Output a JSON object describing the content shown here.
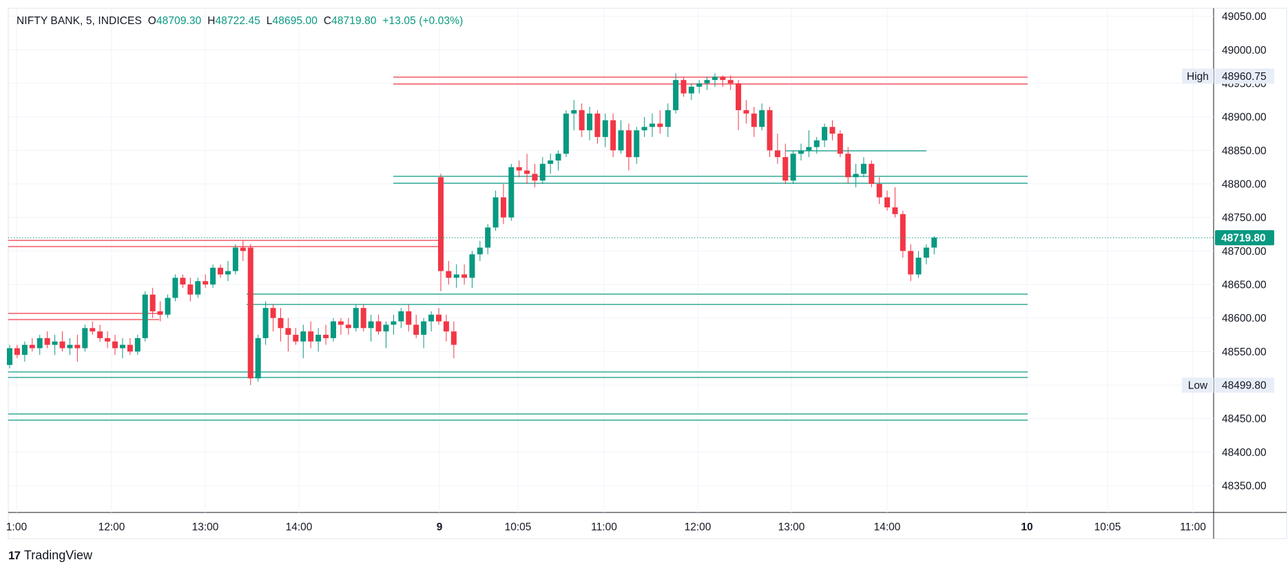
{
  "header": {
    "symbol": "NIFTY BANK, 5, INDICES",
    "open_label": "O",
    "open": "48709.30",
    "high_label": "H",
    "high": "48722.45",
    "low_label": "L",
    "low": "48695.00",
    "close_label": "C",
    "close": "48719.80",
    "change": "+13.05 (+0.03%)"
  },
  "brand": {
    "logo": "17",
    "name": "TradingView"
  },
  "colors": {
    "up": "#089981",
    "down": "#f23645",
    "grid": "#f0f3fa",
    "axis": "#131722"
  },
  "chart_data": {
    "type": "candlestick",
    "y_ticks": [
      48350,
      48400,
      48450,
      48500,
      48550,
      48600,
      48650,
      48700,
      48750,
      48800,
      48850,
      48900,
      48950,
      49000,
      49050
    ],
    "y_tick_labels": [
      "48350.00",
      "48400.00",
      "48450.00",
      "48500.00",
      "48550.00",
      "48600.00",
      "48650.00",
      "48700.00",
      "48750.00",
      "48800.00",
      "48850.00",
      "48900.00",
      "48950.00",
      "49000.00",
      "49050.00"
    ],
    "ylim": [
      48310,
      49062
    ],
    "x_ticks": [
      {
        "label": "1:00",
        "bold": false
      },
      {
        "label": "12:00",
        "bold": false
      },
      {
        "label": "13:00",
        "bold": false
      },
      {
        "label": "14:00",
        "bold": false
      },
      {
        "label": "9",
        "bold": true
      },
      {
        "label": "10:05",
        "bold": false
      },
      {
        "label": "11:00",
        "bold": false
      },
      {
        "label": "12:00",
        "bold": false
      },
      {
        "label": "13:00",
        "bold": false
      },
      {
        "label": "14:00",
        "bold": false
      },
      {
        "label": "10",
        "bold": true
      },
      {
        "label": "10:05",
        "bold": false
      },
      {
        "label": "11:00",
        "bold": false
      }
    ],
    "price_tags": [
      {
        "name": "High",
        "value": "48960.75",
        "y": 48960.75
      },
      {
        "name": "Low",
        "value": "48499.80",
        "y": 48499.8
      }
    ],
    "last_price": {
      "value": "48719.80",
      "y": 48719.8
    },
    "candles": [
      [
        48530,
        48560,
        48525,
        48555
      ],
      [
        48555,
        48560,
        48540,
        48545
      ],
      [
        48545,
        48565,
        48535,
        48560
      ],
      [
        48560,
        48570,
        48550,
        48555
      ],
      [
        48555,
        48575,
        48545,
        48570
      ],
      [
        48570,
        48580,
        48555,
        48560
      ],
      [
        48560,
        48575,
        48545,
        48565
      ],
      [
        48565,
        48580,
        48550,
        48555
      ],
      [
        48555,
        48570,
        48545,
        48560
      ],
      [
        48560,
        48575,
        48535,
        48555
      ],
      [
        48555,
        48590,
        48550,
        48585
      ],
      [
        48585,
        48595,
        48575,
        48580
      ],
      [
        48580,
        48590,
        48565,
        48570
      ],
      [
        48570,
        48580,
        48555,
        48565
      ],
      [
        48565,
        48575,
        48545,
        48555
      ],
      [
        48555,
        48570,
        48540,
        48560
      ],
      [
        48560,
        48570,
        48545,
        48550
      ],
      [
        48550,
        48575,
        48545,
        48570
      ],
      [
        48570,
        48640,
        48565,
        48635
      ],
      [
        48635,
        48645,
        48600,
        48610
      ],
      [
        48610,
        48625,
        48595,
        48605
      ],
      [
        48605,
        48635,
        48600,
        48630
      ],
      [
        48630,
        48665,
        48625,
        48660
      ],
      [
        48660,
        48665,
        48645,
        48650
      ],
      [
        48650,
        48660,
        48625,
        48635
      ],
      [
        48635,
        48660,
        48630,
        48655
      ],
      [
        48655,
        48665,
        48645,
        48650
      ],
      [
        48650,
        48680,
        48645,
        48675
      ],
      [
        48675,
        48680,
        48660,
        48665
      ],
      [
        48665,
        48685,
        48655,
        48670
      ],
      [
        48670,
        48710,
        48665,
        48705
      ],
      [
        48705,
        48715,
        48685,
        48700
      ],
      [
        48705,
        48710,
        48500,
        48510
      ],
      [
        48510,
        48575,
        48505,
        48570
      ],
      [
        48570,
        48625,
        48560,
        48615
      ],
      [
        48615,
        48620,
        48580,
        48600
      ],
      [
        48600,
        48615,
        48565,
        48585
      ],
      [
        48585,
        48600,
        48550,
        48575
      ],
      [
        48575,
        48585,
        48560,
        48565
      ],
      [
        48565,
        48590,
        48540,
        48580
      ],
      [
        48580,
        48595,
        48555,
        48565
      ],
      [
        48565,
        48585,
        48550,
        48575
      ],
      [
        48575,
        48590,
        48560,
        48570
      ],
      [
        48570,
        48600,
        48565,
        48595
      ],
      [
        48595,
        48600,
        48575,
        48590
      ],
      [
        48590,
        48600,
        48575,
        48585
      ],
      [
        48585,
        48620,
        48580,
        48615
      ],
      [
        48615,
        48620,
        48580,
        48585
      ],
      [
        48585,
        48605,
        48565,
        48595
      ],
      [
        48595,
        48605,
        48575,
        48580
      ],
      [
        48580,
        48595,
        48555,
        48590
      ],
      [
        48590,
        48605,
        48575,
        48595
      ],
      [
        48595,
        48615,
        48585,
        48610
      ],
      [
        48610,
        48620,
        48580,
        48590
      ],
      [
        48590,
        48605,
        48570,
        48575
      ],
      [
        48575,
        48600,
        48555,
        48595
      ],
      [
        48595,
        48610,
        48580,
        48605
      ],
      [
        48605,
        48615,
        48590,
        48595
      ],
      [
        48595,
        48605,
        48565,
        48580
      ],
      [
        48580,
        48595,
        48540,
        48560
      ],
      [
        48810,
        48815,
        48640,
        48670
      ],
      [
        48670,
        48685,
        48650,
        48660
      ],
      [
        48660,
        48680,
        48645,
        48665
      ],
      [
        48665,
        48680,
        48650,
        48660
      ],
      [
        48660,
        48700,
        48645,
        48695
      ],
      [
        48695,
        48715,
        48685,
        48705
      ],
      [
        48705,
        48740,
        48695,
        48735
      ],
      [
        48735,
        48790,
        48730,
        48780
      ],
      [
        48780,
        48800,
        48740,
        48750
      ],
      [
        48750,
        48830,
        48745,
        48825
      ],
      [
        48825,
        48835,
        48810,
        48820
      ],
      [
        48820,
        48845,
        48800,
        48815
      ],
      [
        48815,
        48830,
        48795,
        48805
      ],
      [
        48805,
        48840,
        48800,
        48830
      ],
      [
        48830,
        48845,
        48815,
        48835
      ],
      [
        48835,
        48850,
        48820,
        48845
      ],
      [
        48845,
        48910,
        48840,
        48905
      ],
      [
        48905,
        48925,
        48880,
        48910
      ],
      [
        48910,
        48920,
        48870,
        48880
      ],
      [
        48880,
        48915,
        48865,
        48905
      ],
      [
        48905,
        48910,
        48860,
        48870
      ],
      [
        48870,
        48905,
        48855,
        48895
      ],
      [
        48895,
        48905,
        48840,
        48850
      ],
      [
        48850,
        48895,
        48845,
        48880
      ],
      [
        48880,
        48890,
        48820,
        48840
      ],
      [
        48840,
        48885,
        48830,
        48880
      ],
      [
        48880,
        48900,
        48870,
        48885
      ],
      [
        48885,
        48905,
        48870,
        48890
      ],
      [
        48890,
        48910,
        48875,
        48885
      ],
      [
        48885,
        48920,
        48870,
        48910
      ],
      [
        48910,
        48965,
        48905,
        48955
      ],
      [
        48955,
        48960,
        48930,
        48935
      ],
      [
        48935,
        48950,
        48925,
        48945
      ],
      [
        48945,
        48955,
        48935,
        48950
      ],
      [
        48950,
        48960,
        48940,
        48955
      ],
      [
        48955,
        48965,
        48945,
        48960
      ],
      [
        48960,
        48962,
        48945,
        48955
      ],
      [
        48955,
        48962,
        48940,
        48950
      ],
      [
        48950,
        48955,
        48880,
        48910
      ],
      [
        48910,
        48925,
        48890,
        48905
      ],
      [
        48905,
        48915,
        48870,
        48885
      ],
      [
        48885,
        48920,
        48880,
        48910
      ],
      [
        48910,
        48915,
        48840,
        48850
      ],
      [
        48850,
        48875,
        48830,
        48840
      ],
      [
        48840,
        48860,
        48800,
        48805
      ],
      [
        48805,
        48850,
        48800,
        48845
      ],
      [
        48845,
        48860,
        48835,
        48850
      ],
      [
        48850,
        48880,
        48840,
        48855
      ],
      [
        48855,
        48870,
        48845,
        48865
      ],
      [
        48865,
        48890,
        48855,
        48885
      ],
      [
        48885,
        48895,
        48865,
        48875
      ],
      [
        48875,
        48880,
        48840,
        48845
      ],
      [
        48845,
        48855,
        48800,
        48810
      ],
      [
        48810,
        48830,
        48795,
        48815
      ],
      [
        48815,
        48840,
        48810,
        48830
      ],
      [
        48830,
        48835,
        48795,
        48800
      ],
      [
        48800,
        48810,
        48770,
        48780
      ],
      [
        48780,
        48790,
        48760,
        48765
      ],
      [
        48765,
        48795,
        48750,
        48755
      ],
      [
        48755,
        48760,
        48690,
        48700
      ],
      [
        48700,
        48710,
        48655,
        48665
      ],
      [
        48665,
        48700,
        48660,
        48690
      ],
      [
        48690,
        48710,
        48680,
        48705
      ],
      [
        48705,
        48722,
        48695,
        48720
      ]
    ]
  }
}
